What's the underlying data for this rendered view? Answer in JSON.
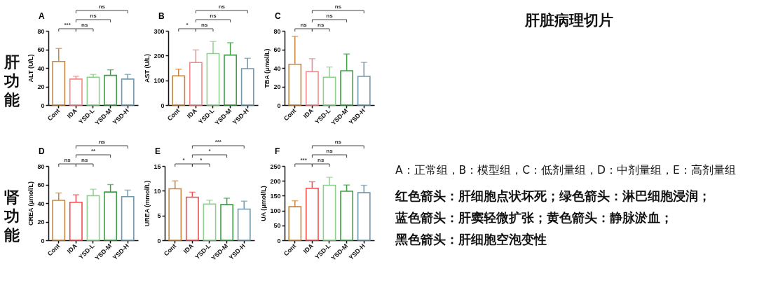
{
  "chart_data": [
    {
      "type": "bar",
      "title": "A",
      "ylabel": "ALT (U/L)",
      "categories": [
        "Cont",
        "IDA",
        "YSD-L",
        "YSD-M",
        "YSD-H"
      ],
      "values": [
        47,
        28,
        30,
        32,
        28
      ],
      "errors": [
        [
          47,
          61
        ],
        [
          28,
          31
        ],
        [
          30,
          33
        ],
        [
          32,
          38
        ],
        [
          28,
          33
        ]
      ],
      "colors": [
        "#c8863e",
        "#f08a8a",
        "#8fcf8f",
        "#3f9f46",
        "#7197ab"
      ],
      "ylim": [
        0,
        80
      ],
      "yticks": [
        0,
        20,
        40,
        60,
        80
      ],
      "annotations": [
        "***",
        "ns",
        "ns",
        "ns",
        "肝功能"
      ]
    },
    {
      "type": "bar",
      "title": "B",
      "ylabel": "AST (U/L)",
      "categories": [
        "Cont",
        "IDA",
        "YSD-L",
        "YSD-M",
        "YSD-H"
      ],
      "values": [
        118,
        172,
        208,
        202,
        147
      ],
      "errors": [
        [
          118,
          145
        ],
        [
          172,
          223
        ],
        [
          208,
          257
        ],
        [
          202,
          252
        ],
        [
          147,
          189
        ]
      ],
      "colors": [
        "#c8863e",
        "#f08a8a",
        "#8fcf8f",
        "#3f9f46",
        "#7197ab"
      ],
      "ylim": [
        0,
        300
      ],
      "yticks": [
        0,
        100,
        200,
        300
      ],
      "annotations": [
        "*",
        "ns",
        "ns",
        "ns"
      ]
    },
    {
      "type": "bar",
      "title": "C",
      "ylabel": "TBA (μmol/L)",
      "categories": [
        "Cont",
        "IDA",
        "YSD-L",
        "YSD-M",
        "YSD-H"
      ],
      "values": [
        44,
        36,
        30,
        37,
        31
      ],
      "errors": [
        [
          44,
          74
        ],
        [
          36,
          50
        ],
        [
          30,
          41
        ],
        [
          37,
          55
        ],
        [
          31,
          46
        ]
      ],
      "colors": [
        "#c8863e",
        "#f08a8a",
        "#8fcf8f",
        "#3f9f46",
        "#7197ab"
      ],
      "ylim": [
        0,
        80
      ],
      "yticks": [
        0,
        20,
        40,
        60,
        80
      ],
      "annotations": [
        "ns",
        "ns",
        "ns",
        "ns"
      ]
    },
    {
      "type": "bar",
      "title": "D",
      "ylabel": "CREA (μmol/L)",
      "categories": [
        "Cont",
        "IDA",
        "YSD-L",
        "YSD-M",
        "YSD-H"
      ],
      "values": [
        43,
        41,
        48,
        52,
        47
      ],
      "errors": [
        [
          43,
          51
        ],
        [
          41,
          49
        ],
        [
          48,
          55
        ],
        [
          52,
          60
        ],
        [
          47,
          54
        ]
      ],
      "colors": [
        "#c8863e",
        "#ee4d4d",
        "#8fcf8f",
        "#3f9f46",
        "#7197ab"
      ],
      "ylim": [
        0,
        80
      ],
      "yticks": [
        0,
        20,
        40,
        60,
        80
      ],
      "annotations": [
        "ns",
        "ns",
        "**",
        "ns",
        "肾功能"
      ]
    },
    {
      "type": "bar",
      "title": "E",
      "ylabel": "UREA (mmol/L)",
      "categories": [
        "Cont",
        "IDA",
        "YSD-L",
        "YSD-M",
        "YSD-H"
      ],
      "values": [
        10.4,
        8.7,
        7.3,
        7.2,
        6.3
      ],
      "errors": [
        [
          10.4,
          12
        ],
        [
          8.7,
          9.7
        ],
        [
          7.3,
          8.1
        ],
        [
          7.2,
          8.5
        ],
        [
          6.3,
          7.9
        ]
      ],
      "colors": [
        "#c8863e",
        "#ee4d4d",
        "#8fcf8f",
        "#3f9f46",
        "#7197ab"
      ],
      "ylim": [
        0,
        15
      ],
      "yticks": [
        0,
        5,
        10,
        15
      ],
      "annotations": [
        "*",
        "*",
        "*",
        "***"
      ]
    },
    {
      "type": "bar",
      "title": "F",
      "ylabel": "UA (μmol/L)",
      "categories": [
        "Cont",
        "IDA",
        "YSD-L",
        "YSD-M",
        "YSD-H"
      ],
      "values": [
        113,
        175,
        185,
        165,
        160
      ],
      "errors": [
        [
          113,
          133
        ],
        [
          175,
          197
        ],
        [
          185,
          212
        ],
        [
          165,
          186
        ],
        [
          160,
          185
        ]
      ],
      "colors": [
        "#c8863e",
        "#ee4d4d",
        "#8fcf8f",
        "#3f9f46",
        "#7197ab"
      ],
      "ylim": [
        0,
        250
      ],
      "yticks": [
        0,
        50,
        100,
        150,
        200,
        250
      ],
      "annotations": [
        "***",
        "ns",
        "ns",
        "ns"
      ]
    },
    {
      "type": "other",
      "title": "肝脏病理切片",
      "annotations": [
        "A：正常组，B：模型组，C：低剂量组，D：中剂量组，E：高剂量组",
        "红色箭头：肝细胞点状坏死；绿色箭头：淋巴细胞浸润；",
        "蓝色箭头：肝窦轻微扩张；黄色箭头：静脉淤血；",
        "黑色箭头：肝细胞空泡变性"
      ]
    }
  ]
}
